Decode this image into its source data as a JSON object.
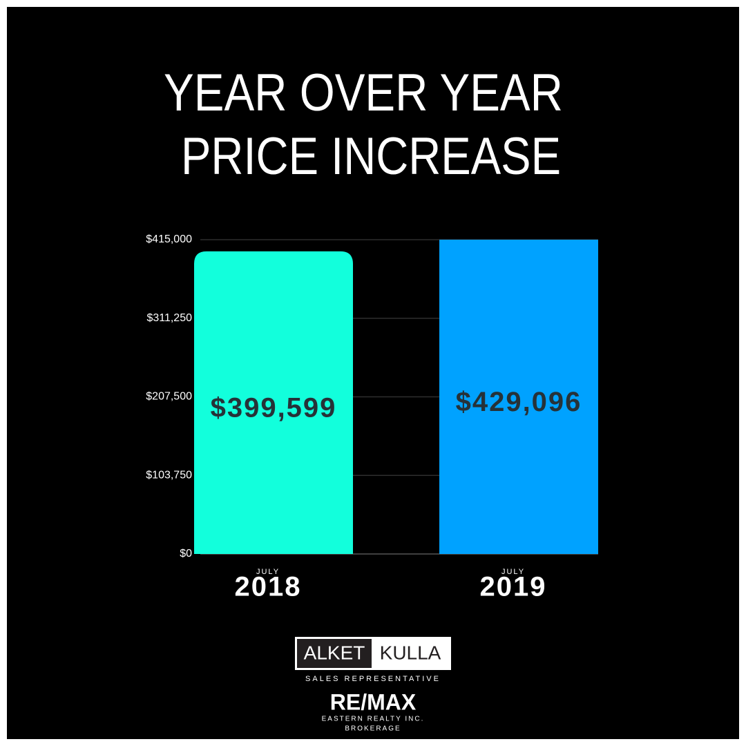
{
  "chart_data": {
    "type": "bar",
    "title_lines": [
      "YEAR OVER YEAR",
      "PRICE INCREASE"
    ],
    "categories": [
      "2018",
      "2019"
    ],
    "category_sublabels": [
      "JULY",
      "JULY"
    ],
    "series": [
      {
        "values": [
          399599,
          429096
        ],
        "value_labels": [
          "$399,599",
          "$429,096"
        ],
        "colors": [
          "#12ffdc",
          "#00a2ff"
        ]
      }
    ],
    "ylim": [
      0,
      415000
    ],
    "yticks": [
      {
        "value": 0,
        "label": "$0"
      },
      {
        "value": 103750,
        "label": "$103,750"
      },
      {
        "value": 207500,
        "label": "$207,500"
      },
      {
        "value": 311250,
        "label": "$311,250"
      },
      {
        "value": 415000,
        "label": "$415,000"
      }
    ],
    "grid": true
  },
  "branding": {
    "first_name": "ALKET",
    "last_name": "KULLA",
    "role": "SALES REPRESENTATIVE",
    "company": "RE/MAX",
    "office": "EASTERN REALTY INC.",
    "office_type": "BROKERAGE"
  }
}
